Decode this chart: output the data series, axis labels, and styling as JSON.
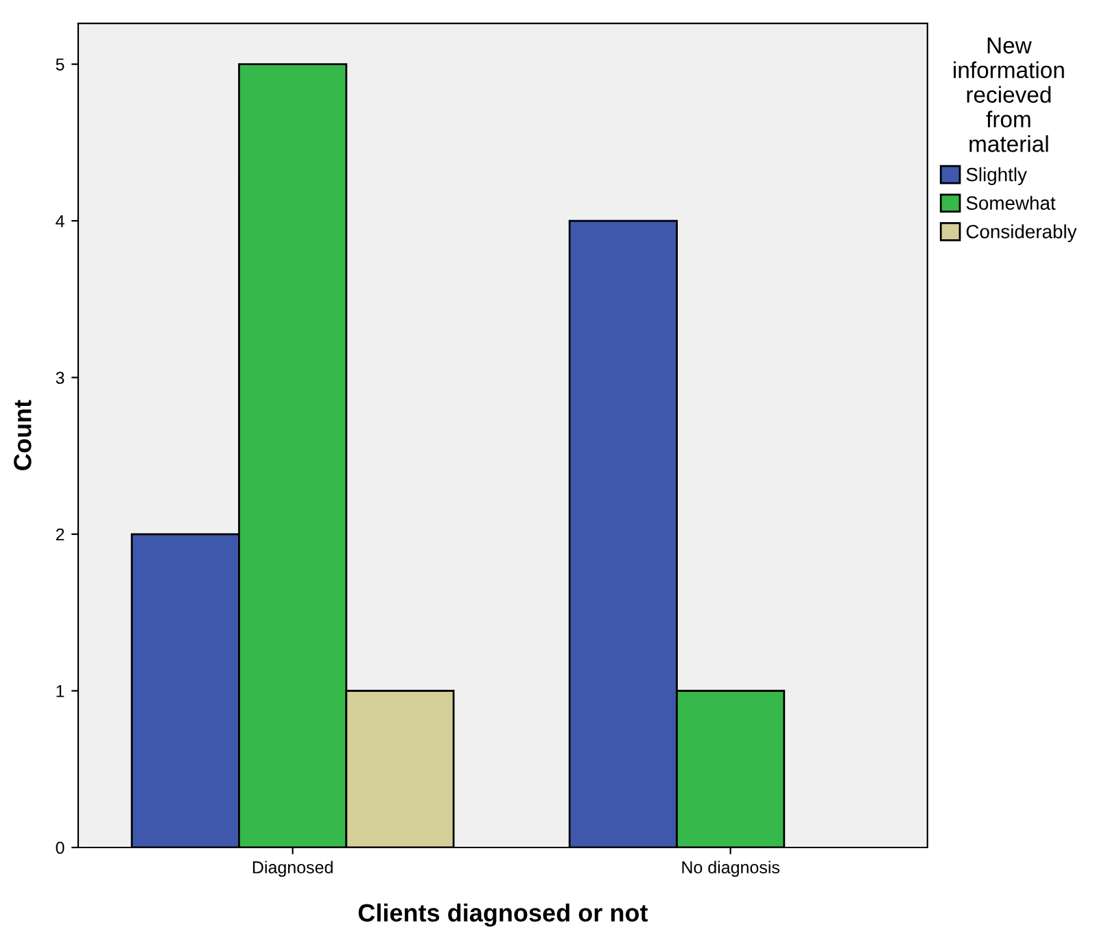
{
  "chart_data": {
    "type": "bar",
    "xlabel": "Clients diagnosed or not",
    "ylabel": "Count",
    "legend_title": "New\ninformation\nrecieved\nfrom\nmaterial",
    "categories": [
      "Diagnosed",
      "No diagnosis"
    ],
    "series": [
      {
        "name": "Slightly",
        "color": "#3e58ac",
        "values": [
          2,
          4
        ]
      },
      {
        "name": "Somewhat",
        "color": "#36b84a",
        "values": [
          5,
          1
        ]
      },
      {
        "name": "Considerably",
        "color": "#d4cf98",
        "values": [
          1,
          null
        ]
      }
    ],
    "ylim": [
      0,
      5.26
    ],
    "yticks": [
      0,
      1,
      2,
      3,
      4,
      5
    ],
    "grid": false,
    "legend": "top right"
  }
}
